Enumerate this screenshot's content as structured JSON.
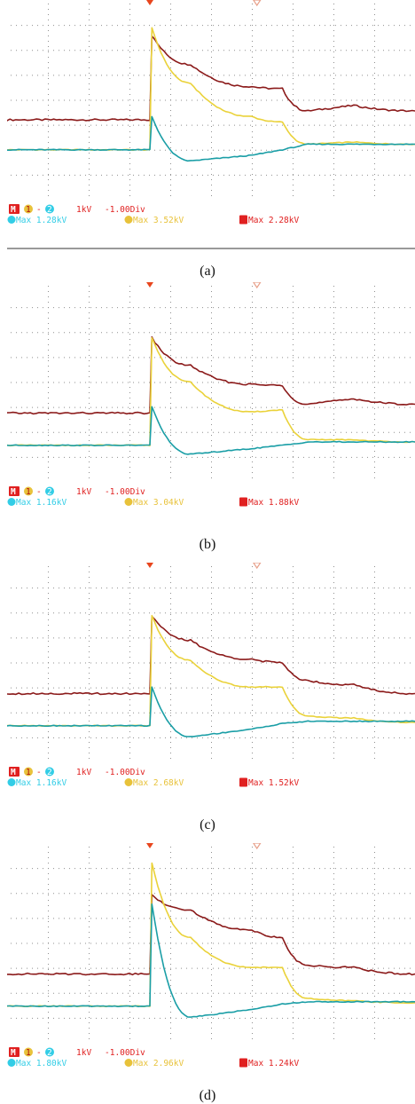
{
  "colors": {
    "channel_1": "#ead23a",
    "channel_2": "#1a9ea6",
    "math_M": "#8b1a1a",
    "readout_red": "#e02020",
    "readout_yellow": "#e8c23a",
    "readout_cyan": "#32cde6",
    "trigger_marker": "#e8461e"
  },
  "chart_data": [
    {
      "type": "line",
      "caption": "(a)",
      "readout": {
        "math_badge": "M",
        "ch1_badge": "1",
        "minus": "-",
        "ch2_badge": "2",
        "scale": "1kV",
        "offset": "-1.00Div",
        "max_ch2_label": "Max 1.28kV",
        "max_ch1_label": "Max 3.52kV",
        "max_math_label": "Max 2.28kV"
      },
      "series": [
        {
          "channel": "1",
          "color": "#ead23a",
          "x": [
            0,
            1.4,
            1.42,
            1.8,
            2.4,
            2.7,
            2.95,
            3.4,
            4.0
          ],
          "y": [
            0.45,
            0.45,
            1.55,
            1.05,
            0.75,
            0.7,
            0.5,
            0.52,
            0.5
          ]
        },
        {
          "channel": "2",
          "color": "#1a9ea6",
          "x": [
            0,
            1.4,
            1.42,
            1.8,
            2.4,
            2.7,
            2.95,
            3.4,
            4.0
          ],
          "y": [
            0.45,
            0.45,
            0.75,
            0.35,
            0.4,
            0.45,
            0.5,
            0.5,
            0.5
          ]
        },
        {
          "channel": "M",
          "color": "#8b1a1a",
          "x": [
            0,
            1.4,
            1.42,
            1.8,
            2.4,
            2.7,
            2.95,
            3.4,
            4.0
          ],
          "y": [
            0.72,
            0.72,
            1.48,
            1.22,
            1.02,
            1.0,
            0.8,
            0.85,
            0.8
          ]
        }
      ]
    },
    {
      "type": "line",
      "caption": "(b)",
      "readout": {
        "math_badge": "M",
        "ch1_badge": "1",
        "minus": "-",
        "ch2_badge": "2",
        "scale": "1kV",
        "offset": "-1.00Div",
        "max_ch2_label": "Max 1.16kV",
        "max_ch1_label": "Max 3.04kV",
        "max_math_label": "Max 1.88kV"
      },
      "series": [
        {
          "channel": "1",
          "color": "#ead23a",
          "x": [
            0,
            1.4,
            1.42,
            1.8,
            2.4,
            2.7,
            2.95,
            3.4,
            4.0
          ],
          "y": [
            0.33,
            0.33,
            1.3,
            0.9,
            0.63,
            0.65,
            0.38,
            0.38,
            0.36
          ]
        },
        {
          "channel": "2",
          "color": "#1a9ea6",
          "x": [
            0,
            1.4,
            1.42,
            1.8,
            2.4,
            2.7,
            2.95,
            3.4,
            4.0
          ],
          "y": [
            0.33,
            0.33,
            0.68,
            0.25,
            0.3,
            0.33,
            0.36,
            0.36,
            0.36
          ]
        },
        {
          "channel": "M",
          "color": "#8b1a1a",
          "x": [
            0,
            1.4,
            1.42,
            1.8,
            2.4,
            2.7,
            2.95,
            3.4,
            4.0
          ],
          "y": [
            0.62,
            0.62,
            1.3,
            1.05,
            0.88,
            0.87,
            0.7,
            0.75,
            0.7
          ]
        }
      ]
    },
    {
      "type": "line",
      "caption": "(c)",
      "readout": {
        "math_badge": "M",
        "ch1_badge": "1",
        "minus": "-",
        "ch2_badge": "2",
        "scale": "1kV",
        "offset": "-1.00Div",
        "max_ch2_label": "Max 1.16kV",
        "max_ch1_label": "Max 2.68kV",
        "max_math_label": "Max 1.52kV"
      },
      "series": [
        {
          "channel": "1",
          "color": "#ead23a",
          "x": [
            0,
            1.4,
            1.42,
            1.8,
            2.4,
            2.7,
            2.95,
            3.4,
            4.0
          ],
          "y": [
            0.33,
            0.33,
            1.32,
            0.92,
            0.68,
            0.68,
            0.42,
            0.4,
            0.36
          ]
        },
        {
          "channel": "2",
          "color": "#1a9ea6",
          "x": [
            0,
            1.4,
            1.42,
            1.8,
            2.4,
            2.7,
            2.95,
            3.4,
            4.0
          ],
          "y": [
            0.33,
            0.33,
            0.68,
            0.23,
            0.3,
            0.35,
            0.37,
            0.37,
            0.37
          ]
        },
        {
          "channel": "M",
          "color": "#8b1a1a",
          "x": [
            0,
            1.4,
            1.42,
            1.8,
            2.4,
            2.7,
            2.95,
            3.4,
            4.0
          ],
          "y": [
            0.62,
            0.62,
            1.32,
            1.1,
            0.93,
            0.9,
            0.74,
            0.7,
            0.62
          ]
        }
      ]
    },
    {
      "type": "line",
      "caption": "(d)",
      "readout": {
        "math_badge": "M",
        "ch1_badge": "1",
        "minus": "-",
        "ch2_badge": "2",
        "scale": "1kV",
        "offset": "-1.00Div",
        "max_ch2_label": "Max 1.80kV",
        "max_ch1_label": "Max 2.96kV",
        "max_math_label": "Max 1.24kV"
      },
      "series": [
        {
          "channel": "1",
          "color": "#ead23a",
          "x": [
            0,
            1.4,
            1.42,
            1.8,
            2.4,
            2.7,
            2.95,
            3.4,
            4.0
          ],
          "y": [
            0.33,
            0.33,
            1.62,
            0.95,
            0.68,
            0.68,
            0.4,
            0.38,
            0.36
          ]
        },
        {
          "channel": "2",
          "color": "#1a9ea6",
          "x": [
            0,
            1.4,
            1.42,
            1.8,
            2.4,
            2.7,
            2.95,
            3.4,
            4.0
          ],
          "y": [
            0.33,
            0.33,
            1.25,
            0.23,
            0.3,
            0.35,
            0.37,
            0.37,
            0.37
          ]
        },
        {
          "channel": "M",
          "color": "#8b1a1a",
          "x": [
            0,
            1.4,
            1.42,
            1.8,
            2.4,
            2.7,
            2.95,
            3.4,
            4.0
          ],
          "y": [
            0.62,
            0.62,
            1.33,
            1.2,
            1.02,
            0.95,
            0.7,
            0.68,
            0.62
          ]
        }
      ]
    }
  ]
}
